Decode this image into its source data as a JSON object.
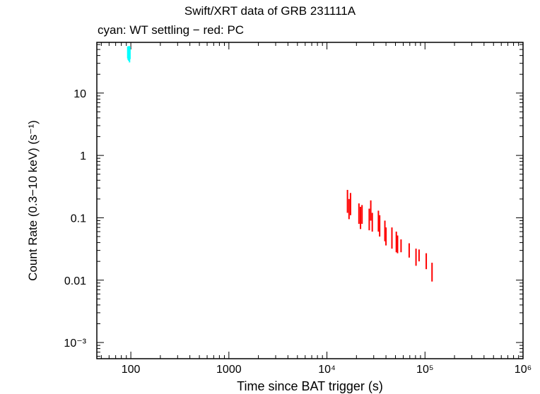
{
  "chart_data": {
    "type": "scatter",
    "title": "Swift/XRT data of GRB 231111A",
    "subtitle": "cyan: WT settling − red: PC",
    "xlabel": "Time since BAT trigger (s)",
    "ylabel": "Count Rate (0.3−10 keV) (s⁻¹)",
    "xscale": "log",
    "yscale": "log",
    "xlim": [
      45,
      1000000
    ],
    "ylim": [
      0.00055,
      65
    ],
    "xticks": [
      {
        "value": 100,
        "label": "100"
      },
      {
        "value": 1000,
        "label": "1000"
      },
      {
        "value": 10000,
        "label": "10⁴"
      },
      {
        "value": 100000,
        "label": "10⁵"
      },
      {
        "value": 1000000,
        "label": "10⁶"
      }
    ],
    "yticks": [
      {
        "value": 0.001,
        "label": "10⁻³"
      },
      {
        "value": 0.01,
        "label": "0.01"
      },
      {
        "value": 0.1,
        "label": "0.1"
      },
      {
        "value": 1,
        "label": "1"
      },
      {
        "value": 10,
        "label": "10"
      }
    ],
    "series": [
      {
        "color": "#00ffff",
        "points": [
          {
            "x": 93,
            "y": 46,
            "ylo": 36,
            "yhi": 56
          },
          {
            "x": 94,
            "y": 44,
            "ylo": 34,
            "yhi": 54
          },
          {
            "x": 95,
            "y": 42,
            "ylo": 33,
            "yhi": 52
          },
          {
            "x": 96,
            "y": 47,
            "ylo": 37,
            "yhi": 57
          },
          {
            "x": 97,
            "y": 40,
            "ylo": 31,
            "yhi": 50
          },
          {
            "x": 98,
            "y": 45,
            "ylo": 35,
            "yhi": 55
          }
        ]
      },
      {
        "color": "#ff0000",
        "points": [
          {
            "x": 16200,
            "y": 0.19,
            "ylo": 0.12,
            "yhi": 0.28
          },
          {
            "x": 16800,
            "y": 0.14,
            "ylo": 0.095,
            "yhi": 0.2
          },
          {
            "x": 17400,
            "y": 0.17,
            "ylo": 0.11,
            "yhi": 0.25
          },
          {
            "x": 21200,
            "y": 0.12,
            "ylo": 0.08,
            "yhi": 0.17
          },
          {
            "x": 22000,
            "y": 0.1,
            "ylo": 0.066,
            "yhi": 0.15
          },
          {
            "x": 22800,
            "y": 0.12,
            "ylo": 0.08,
            "yhi": 0.16
          },
          {
            "x": 27000,
            "y": 0.1,
            "ylo": 0.063,
            "yhi": 0.14
          },
          {
            "x": 28000,
            "y": 0.13,
            "ylo": 0.09,
            "yhi": 0.19
          },
          {
            "x": 29000,
            "y": 0.085,
            "ylo": 0.06,
            "yhi": 0.12
          },
          {
            "x": 33500,
            "y": 0.095,
            "ylo": 0.06,
            "yhi": 0.13
          },
          {
            "x": 34500,
            "y": 0.075,
            "ylo": 0.05,
            "yhi": 0.11
          },
          {
            "x": 39000,
            "y": 0.065,
            "ylo": 0.042,
            "yhi": 0.09
          },
          {
            "x": 40000,
            "y": 0.05,
            "ylo": 0.036,
            "yhi": 0.07
          },
          {
            "x": 46000,
            "y": 0.048,
            "ylo": 0.032,
            "yhi": 0.07
          },
          {
            "x": 51000,
            "y": 0.04,
            "ylo": 0.028,
            "yhi": 0.06
          },
          {
            "x": 52500,
            "y": 0.038,
            "ylo": 0.027,
            "yhi": 0.052
          },
          {
            "x": 57000,
            "y": 0.036,
            "ylo": 0.028,
            "yhi": 0.045
          },
          {
            "x": 69000,
            "y": 0.03,
            "ylo": 0.023,
            "yhi": 0.039
          },
          {
            "x": 81000,
            "y": 0.023,
            "ylo": 0.017,
            "yhi": 0.032
          },
          {
            "x": 87000,
            "y": 0.025,
            "ylo": 0.02,
            "yhi": 0.031
          },
          {
            "x": 103000,
            "y": 0.02,
            "ylo": 0.015,
            "yhi": 0.027
          },
          {
            "x": 118000,
            "y": 0.014,
            "ylo": 0.0095,
            "yhi": 0.019
          }
        ]
      }
    ]
  }
}
